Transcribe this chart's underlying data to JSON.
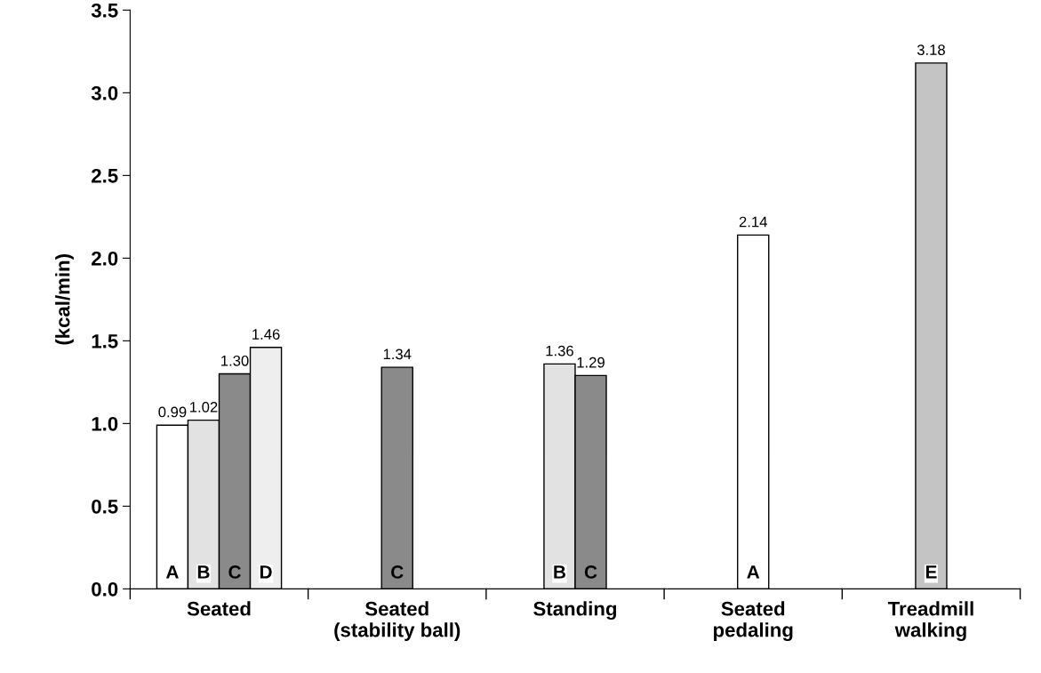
{
  "chart_data": {
    "type": "bar",
    "categories": [
      "Seated",
      "Seated\n(stability ball)",
      "Standing",
      "Seated\npedaling",
      "Treadmill\nwalking"
    ],
    "series": [
      {
        "name": "A",
        "color": "#ffffff",
        "values": [
          0.99,
          null,
          null,
          2.14,
          null
        ],
        "value_labels": [
          "0.99",
          null,
          null,
          "2.14",
          null
        ]
      },
      {
        "name": "B",
        "color": "#e2e2e2",
        "values": [
          1.02,
          null,
          1.36,
          null,
          null
        ],
        "value_labels": [
          "1.02",
          null,
          "1.36",
          null,
          null
        ]
      },
      {
        "name": "C",
        "color": "#8a8a8a",
        "values": [
          1.3,
          1.34,
          1.29,
          null,
          null
        ],
        "value_labels": [
          "1.30",
          "1.34",
          "1.29",
          null,
          null
        ]
      },
      {
        "name": "D",
        "color": "#eeeeee",
        "values": [
          1.46,
          null,
          null,
          null,
          null
        ],
        "value_labels": [
          "1.46",
          null,
          null,
          null,
          null
        ]
      },
      {
        "name": "E",
        "color": "#c4c4c4",
        "values": [
          null,
          null,
          null,
          null,
          3.18
        ],
        "value_labels": [
          null,
          null,
          null,
          null,
          "3.18"
        ]
      }
    ],
    "ylabel": "(kcal/min)",
    "ylim": [
      0,
      3.5
    ],
    "yticks": [
      {
        "value": 0,
        "label": "0.0"
      },
      {
        "value": 0.5,
        "label": "0.5"
      },
      {
        "value": 1,
        "label": "1.0"
      },
      {
        "value": 1.5,
        "label": "1.5"
      },
      {
        "value": 2,
        "label": "2.0"
      },
      {
        "value": 2.5,
        "label": "2.5"
      },
      {
        "value": 3,
        "label": "3.0"
      },
      {
        "value": 3.5,
        "label": "3.5"
      }
    ],
    "grid": false,
    "legend": false
  }
}
